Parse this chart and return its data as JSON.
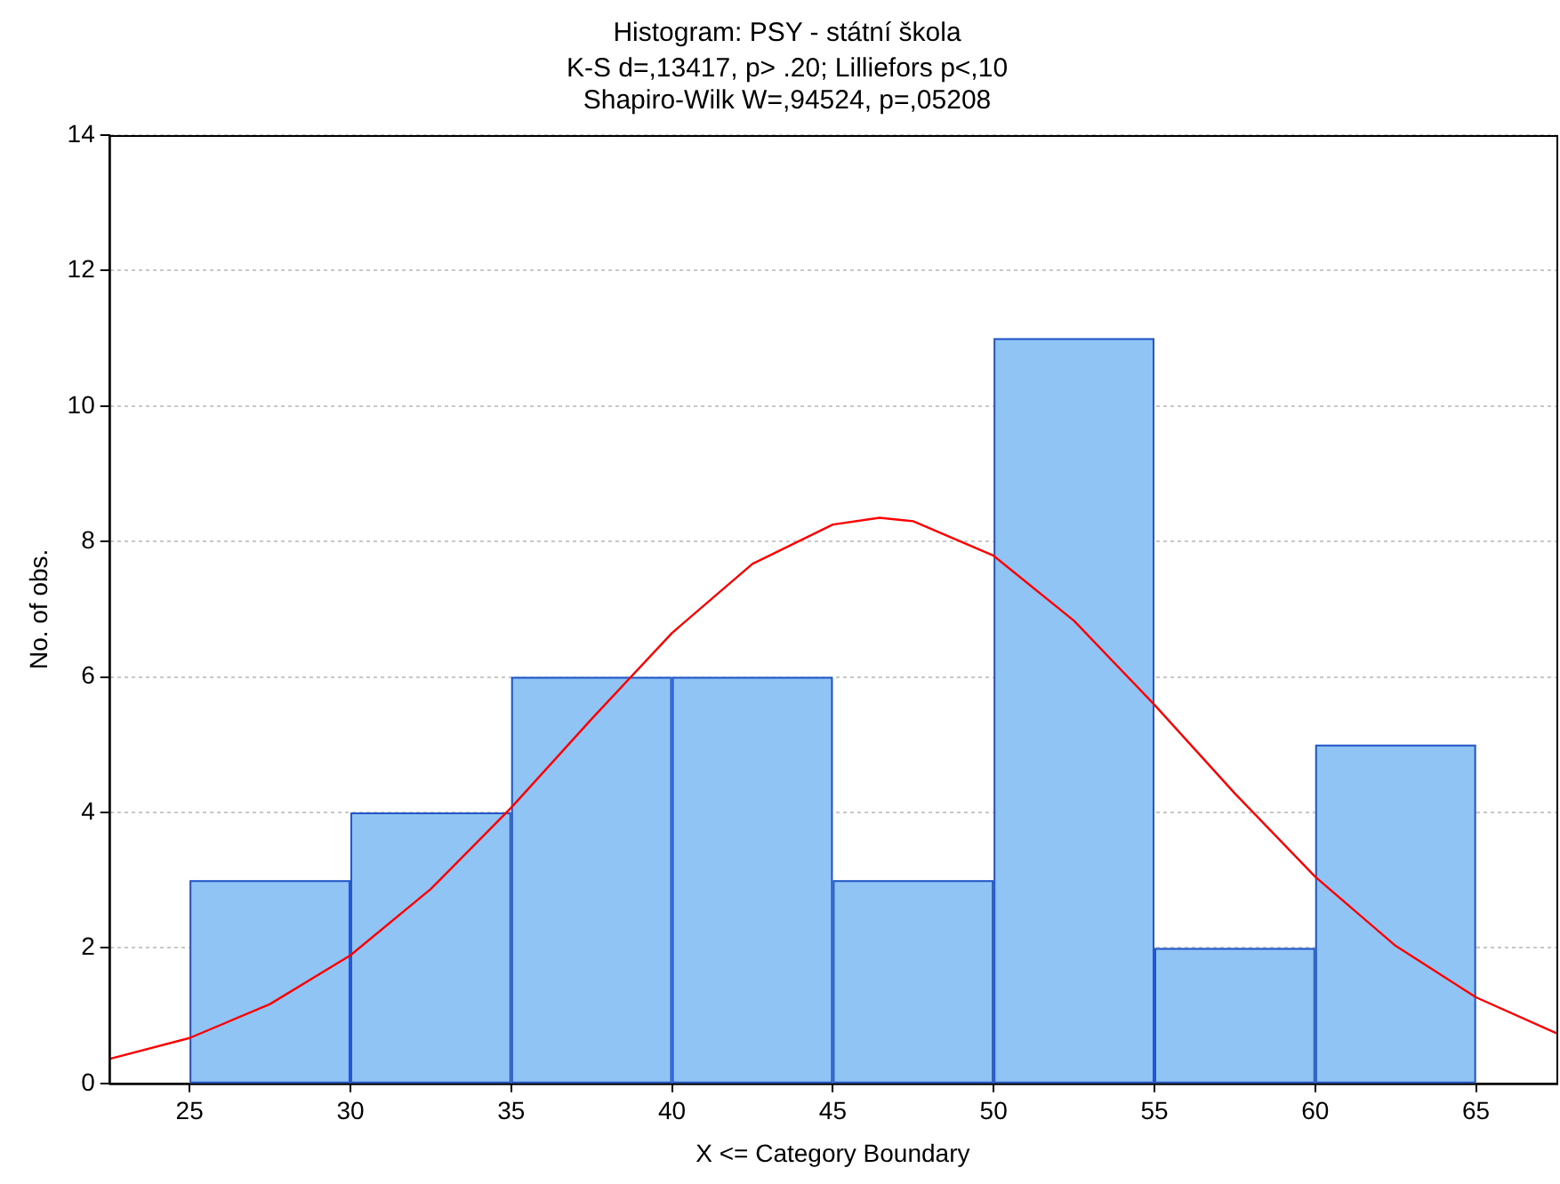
{
  "chart_data": {
    "type": "histogram",
    "title": "Histogram: PSY - státní škola",
    "subtitle": "K-S d=,13417, p> .20; Lilliefors p<,10\nShapiro-Wilk W=,94524, p=,05208",
    "xlabel": "X <= Category Boundary",
    "ylabel": "No. of obs.",
    "bins": [
      25,
      30,
      35,
      40,
      45,
      50,
      55,
      60,
      65
    ],
    "series": [
      {
        "color": "#8fc4f5",
        "values": [
          3,
          4,
          6,
          6,
          3,
          11,
          2,
          5
        ]
      },
      {
        "type": "line",
        "color": "#ff0000",
        "x": [
          22.5,
          25,
          27.5,
          30,
          32.5,
          35,
          37.5,
          40,
          42.5,
          45,
          46.45,
          47.5,
          50,
          52.5,
          55,
          57.5,
          60,
          62.5,
          65,
          67.5
        ],
        "values": [
          0.36,
          0.67,
          1.17,
          1.89,
          2.87,
          4.07,
          5.38,
          6.65,
          7.67,
          8.25,
          8.35,
          8.3,
          7.79,
          6.83,
          5.59,
          4.28,
          3.05,
          2.03,
          1.27,
          0.74
        ]
      }
    ],
    "xlim": [
      22.5,
      67.5
    ],
    "xticks": [
      25,
      30,
      35,
      40,
      45,
      50,
      55,
      60,
      65
    ],
    "ylim": [
      0,
      14
    ],
    "yticks": [
      0,
      2,
      4,
      6,
      8,
      10,
      12,
      14
    ],
    "grid": "y",
    "legend": false,
    "marker": "none",
    "line_style": "solid"
  }
}
